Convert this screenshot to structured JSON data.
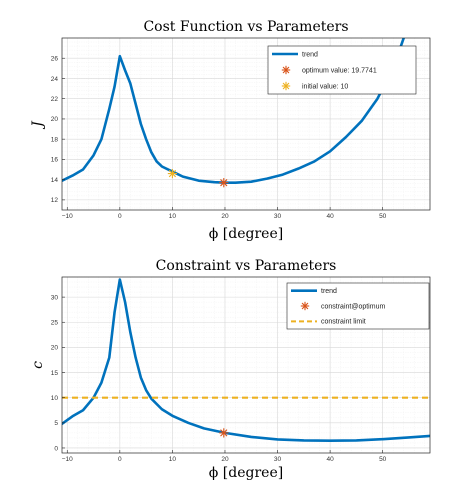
{
  "colors": {
    "trend": "#0072BD",
    "marker_red": "#D95319",
    "marker_orange": "#EDB120",
    "limit": "#EDB120"
  },
  "chart_data": [
    {
      "type": "line",
      "title": "Cost Function vs Parameters",
      "xlabel": "ϕ [degree]",
      "ylabel": "J",
      "xlim": [
        -11,
        59
      ],
      "ylim": [
        11,
        28
      ],
      "xticks": [
        -10,
        0,
        10,
        20,
        30,
        40,
        50
      ],
      "xtick_labels": [
        "−10",
        "0",
        "10",
        "20",
        "30",
        "40",
        "50"
      ],
      "yticks": [
        12,
        14,
        16,
        18,
        20,
        22,
        24,
        26
      ],
      "grid": true,
      "legend_position": "top-right",
      "series": [
        {
          "name": "trend",
          "kind": "line",
          "x": [
            -11,
            -9,
            -7,
            -5,
            -3.5,
            -2,
            -1,
            0,
            1,
            2,
            3,
            4,
            5,
            6,
            7,
            8,
            10,
            12,
            15,
            18,
            20,
            22,
            25,
            28,
            31,
            34,
            37,
            40,
            43,
            46,
            49,
            52,
            54
          ],
          "y": [
            13.9,
            14.4,
            15.0,
            16.4,
            18.0,
            21.0,
            23.2,
            26.2,
            24.8,
            23.5,
            21.5,
            19.5,
            18.0,
            16.7,
            15.8,
            15.3,
            14.8,
            14.3,
            13.9,
            13.75,
            13.7,
            13.7,
            13.8,
            14.1,
            14.5,
            15.1,
            15.8,
            16.8,
            18.2,
            19.8,
            22.0,
            25.0,
            28.0
          ]
        },
        {
          "name": "optimum value: 19.7741",
          "kind": "marker",
          "marker": "asterisk",
          "color": "#D95319",
          "x": [
            19.7741
          ],
          "y": [
            13.7
          ]
        },
        {
          "name": "initial value: 10",
          "kind": "marker",
          "marker": "asterisk",
          "color": "#EDB120",
          "x": [
            10
          ],
          "y": [
            14.6
          ]
        }
      ]
    },
    {
      "type": "line",
      "title": "Constraint vs Parameters",
      "xlabel": "ϕ [degree]",
      "ylabel": "c",
      "xlim": [
        -11,
        59
      ],
      "ylim": [
        -1,
        34
      ],
      "xticks": [
        -10,
        0,
        10,
        20,
        30,
        40,
        50
      ],
      "xtick_labels": [
        "−10",
        "0",
        "10",
        "20",
        "30",
        "40",
        "50"
      ],
      "yticks": [
        0,
        5,
        10,
        15,
        20,
        25,
        30
      ],
      "grid": true,
      "legend_position": "top-right",
      "series": [
        {
          "name": "trend",
          "kind": "line",
          "x": [
            -11,
            -9,
            -7,
            -5,
            -3.5,
            -2,
            -1,
            0,
            1,
            2,
            3,
            4,
            5,
            6,
            8,
            10,
            13,
            16,
            20,
            25,
            30,
            35,
            40,
            45,
            50,
            55,
            59
          ],
          "y": [
            4.8,
            6.3,
            7.5,
            10.0,
            13.0,
            18.0,
            27.0,
            33.5,
            29.0,
            23.0,
            18.0,
            14.0,
            11.5,
            9.8,
            7.7,
            6.4,
            5.0,
            3.9,
            3.0,
            2.2,
            1.7,
            1.5,
            1.45,
            1.5,
            1.75,
            2.1,
            2.4
          ]
        },
        {
          "name": "constraint@optimum",
          "kind": "marker",
          "marker": "asterisk",
          "color": "#D95319",
          "x": [
            19.7741
          ],
          "y": [
            3.0
          ]
        },
        {
          "name": "constraint limit",
          "kind": "hline",
          "color": "#EDB120",
          "y": 10
        }
      ]
    }
  ]
}
